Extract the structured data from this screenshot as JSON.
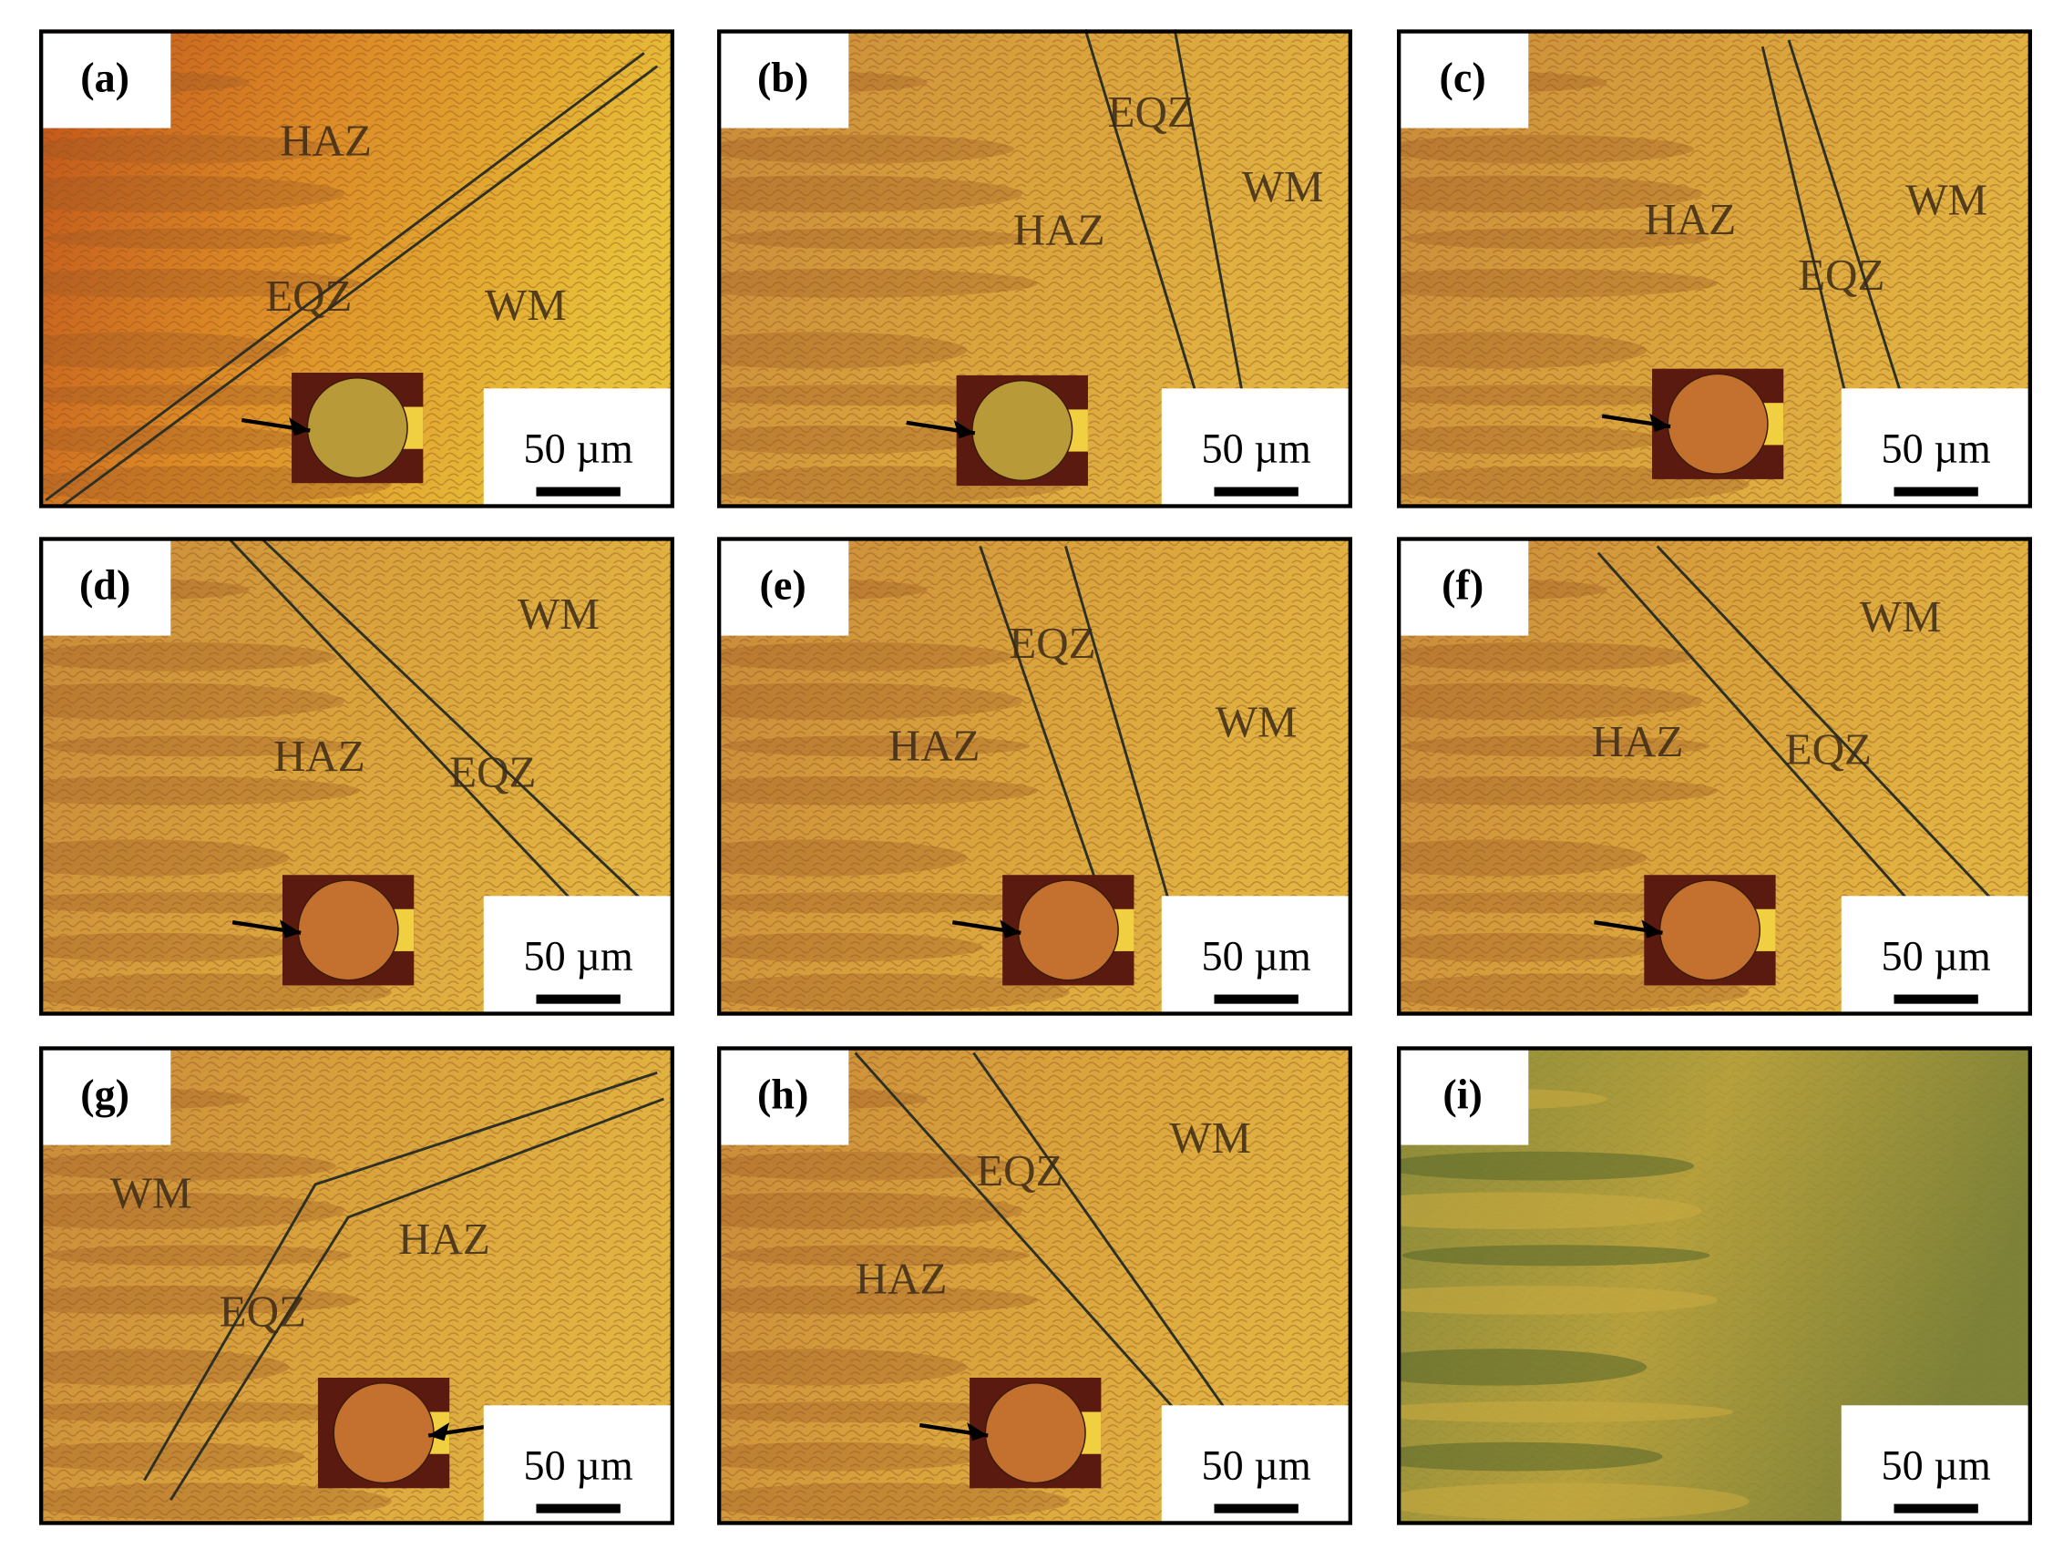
{
  "figure": {
    "panels": [
      {
        "label": "(a)",
        "zones": [
          "HAZ",
          "EQZ",
          "WM"
        ],
        "scale_bar": "50 µm"
      },
      {
        "label": "(b)",
        "zones": [
          "EQZ",
          "WM",
          "HAZ"
        ],
        "scale_bar": "50 µm"
      },
      {
        "label": "(c)",
        "zones": [
          "HAZ",
          "WM",
          "EQZ"
        ],
        "scale_bar": "50 µm"
      },
      {
        "label": "(d)",
        "zones": [
          "WM",
          "HAZ",
          "EQZ"
        ],
        "scale_bar": "50 µm"
      },
      {
        "label": "(e)",
        "zones": [
          "EQZ",
          "WM",
          "HAZ"
        ],
        "scale_bar": "50 µm"
      },
      {
        "label": "(f)",
        "zones": [
          "WM",
          "HAZ",
          "EQZ"
        ],
        "scale_bar": "50 µm"
      },
      {
        "label": "(g)",
        "zones": [
          "WM",
          "HAZ",
          "EQZ"
        ],
        "scale_bar": "50 µm"
      },
      {
        "label": "(h)",
        "zones": [
          "WM",
          "EQZ",
          "HAZ"
        ],
        "scale_bar": "50 µm"
      },
      {
        "label": "(i)",
        "scale_bar": "50 µm"
      }
    ]
  }
}
